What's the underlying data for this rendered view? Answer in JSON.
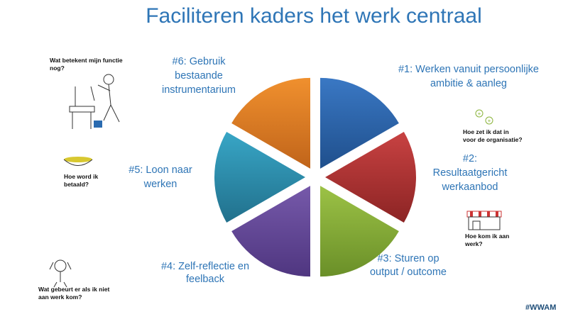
{
  "title": "Faciliteren kaders het werk centraal",
  "segments": [
    {
      "label": [
        "#1: Werken vanuit persoonlijke",
        "ambitie & aanleg"
      ]
    },
    {
      "label": [
        "#2:",
        "Resultaatgericht",
        "werkaanbod"
      ]
    },
    {
      "label": [
        "#3: Sturen op",
        "output / outcome"
      ]
    },
    {
      "label": [
        "#4: Zelf-reflectie en",
        "feelback"
      ]
    },
    {
      "label": [
        "#5: Loon naar",
        "werken"
      ]
    },
    {
      "label": [
        "#6: Gebruik",
        "bestaande",
        "instrumentarium"
      ]
    }
  ],
  "questions": [
    [
      "Wat betekent mijn functie",
      "nog?"
    ],
    [
      "Hoe zet ik dat in",
      "voor de organisatie?"
    ],
    [
      "Hoe word ik",
      "betaald?"
    ],
    [
      "Hoe kom ik aan",
      "werk?"
    ],
    [
      "Wat gebeurt er als ik niet",
      "aan werk kom?"
    ]
  ],
  "footer": "#WWAM"
}
